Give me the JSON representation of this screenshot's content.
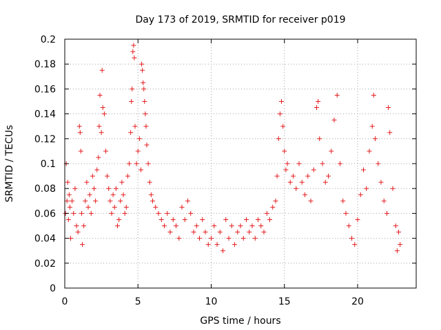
{
  "chart_data": {
    "type": "scatter",
    "title": "Day 173 of 2019, SRMTID for receiver p019",
    "xlabel": "GPS time / hours",
    "ylabel": "SRMTID / TECUs",
    "xlim": [
      0,
      24
    ],
    "ylim": [
      0,
      0.2
    ],
    "x_ticks": [
      0,
      5,
      10,
      15,
      20
    ],
    "x_tick_labels": [
      "0",
      "5",
      "10",
      "15",
      "20"
    ],
    "y_ticks": [
      0,
      0.02,
      0.04,
      0.06,
      0.08,
      0.1,
      0.12,
      0.14,
      0.16,
      0.18,
      0.2
    ],
    "y_tick_labels": [
      "0",
      "0.02",
      "0.04",
      "0.06",
      "0.08",
      "0.1",
      "0.12",
      "0.14",
      "0.16",
      "0.18",
      "0.2"
    ],
    "grid": true,
    "marker": "+",
    "color": "#e41a1c",
    "series": [
      {
        "name": "SRMTID",
        "points": [
          [
            0.05,
            0.06
          ],
          [
            0.1,
            0.1
          ],
          [
            0.15,
            0.07
          ],
          [
            0.2,
            0.085
          ],
          [
            0.25,
            0.055
          ],
          [
            0.3,
            0.075
          ],
          [
            0.35,
            0.065
          ],
          [
            0.4,
            0.04
          ],
          [
            0.5,
            0.07
          ],
          [
            0.6,
            0.06
          ],
          [
            0.7,
            0.08
          ],
          [
            0.8,
            0.05
          ],
          [
            0.9,
            0.045
          ],
          [
            1.0,
            0.13
          ],
          [
            1.05,
            0.125
          ],
          [
            1.1,
            0.11
          ],
          [
            1.15,
            0.06
          ],
          [
            1.2,
            0.035
          ],
          [
            1.3,
            0.05
          ],
          [
            1.4,
            0.07
          ],
          [
            1.5,
            0.085
          ],
          [
            1.6,
            0.065
          ],
          [
            1.7,
            0.075
          ],
          [
            1.8,
            0.06
          ],
          [
            1.9,
            0.09
          ],
          [
            2.0,
            0.08
          ],
          [
            2.1,
            0.07
          ],
          [
            2.2,
            0.095
          ],
          [
            2.3,
            0.105
          ],
          [
            2.35,
            0.13
          ],
          [
            2.4,
            0.155
          ],
          [
            2.5,
            0.125
          ],
          [
            2.55,
            0.175
          ],
          [
            2.6,
            0.145
          ],
          [
            2.7,
            0.14
          ],
          [
            2.8,
            0.11
          ],
          [
            2.9,
            0.09
          ],
          [
            3.0,
            0.08
          ],
          [
            3.1,
            0.07
          ],
          [
            3.2,
            0.06
          ],
          [
            3.3,
            0.075
          ],
          [
            3.4,
            0.065
          ],
          [
            3.5,
            0.08
          ],
          [
            3.6,
            0.05
          ],
          [
            3.7,
            0.055
          ],
          [
            3.8,
            0.07
          ],
          [
            3.9,
            0.085
          ],
          [
            4.0,
            0.075
          ],
          [
            4.1,
            0.06
          ],
          [
            4.2,
            0.065
          ],
          [
            4.3,
            0.09
          ],
          [
            4.4,
            0.1
          ],
          [
            4.5,
            0.125
          ],
          [
            4.55,
            0.15
          ],
          [
            4.6,
            0.16
          ],
          [
            4.65,
            0.19
          ],
          [
            4.7,
            0.195
          ],
          [
            4.75,
            0.185
          ],
          [
            4.8,
            0.13
          ],
          [
            4.9,
            0.1
          ],
          [
            5.0,
            0.11
          ],
          [
            5.1,
            0.12
          ],
          [
            5.2,
            0.095
          ],
          [
            5.25,
            0.18
          ],
          [
            5.3,
            0.175
          ],
          [
            5.35,
            0.165
          ],
          [
            5.4,
            0.16
          ],
          [
            5.45,
            0.15
          ],
          [
            5.5,
            0.14
          ],
          [
            5.55,
            0.13
          ],
          [
            5.6,
            0.115
          ],
          [
            5.7,
            0.1
          ],
          [
            5.8,
            0.085
          ],
          [
            5.9,
            0.075
          ],
          [
            6.0,
            0.07
          ],
          [
            6.2,
            0.065
          ],
          [
            6.4,
            0.06
          ],
          [
            6.6,
            0.055
          ],
          [
            6.8,
            0.05
          ],
          [
            7.0,
            0.06
          ],
          [
            7.2,
            0.045
          ],
          [
            7.4,
            0.055
          ],
          [
            7.6,
            0.05
          ],
          [
            7.8,
            0.04
          ],
          [
            8.0,
            0.065
          ],
          [
            8.2,
            0.055
          ],
          [
            8.4,
            0.07
          ],
          [
            8.6,
            0.06
          ],
          [
            8.8,
            0.045
          ],
          [
            9.0,
            0.05
          ],
          [
            9.2,
            0.04
          ],
          [
            9.4,
            0.055
          ],
          [
            9.6,
            0.045
          ],
          [
            9.8,
            0.035
          ],
          [
            10.0,
            0.04
          ],
          [
            10.2,
            0.05
          ],
          [
            10.4,
            0.035
          ],
          [
            10.6,
            0.045
          ],
          [
            10.8,
            0.03
          ],
          [
            11.0,
            0.055
          ],
          [
            11.2,
            0.04
          ],
          [
            11.4,
            0.05
          ],
          [
            11.6,
            0.035
          ],
          [
            11.8,
            0.045
          ],
          [
            12.0,
            0.05
          ],
          [
            12.2,
            0.04
          ],
          [
            12.4,
            0.055
          ],
          [
            12.6,
            0.045
          ],
          [
            12.8,
            0.05
          ],
          [
            13.0,
            0.04
          ],
          [
            13.2,
            0.055
          ],
          [
            13.4,
            0.05
          ],
          [
            13.6,
            0.045
          ],
          [
            13.8,
            0.06
          ],
          [
            14.0,
            0.055
          ],
          [
            14.2,
            0.065
          ],
          [
            14.4,
            0.07
          ],
          [
            14.5,
            0.09
          ],
          [
            14.6,
            0.12
          ],
          [
            14.7,
            0.14
          ],
          [
            14.8,
            0.15
          ],
          [
            14.9,
            0.13
          ],
          [
            15.0,
            0.11
          ],
          [
            15.1,
            0.095
          ],
          [
            15.2,
            0.1
          ],
          [
            15.4,
            0.085
          ],
          [
            15.6,
            0.09
          ],
          [
            15.8,
            0.08
          ],
          [
            16.0,
            0.1
          ],
          [
            16.2,
            0.085
          ],
          [
            16.4,
            0.075
          ],
          [
            16.6,
            0.09
          ],
          [
            16.8,
            0.07
          ],
          [
            17.0,
            0.095
          ],
          [
            17.2,
            0.145
          ],
          [
            17.3,
            0.15
          ],
          [
            17.4,
            0.12
          ],
          [
            17.6,
            0.1
          ],
          [
            17.8,
            0.085
          ],
          [
            18.0,
            0.09
          ],
          [
            18.2,
            0.11
          ],
          [
            18.4,
            0.135
          ],
          [
            18.6,
            0.155
          ],
          [
            18.8,
            0.1
          ],
          [
            19.0,
            0.07
          ],
          [
            19.2,
            0.06
          ],
          [
            19.4,
            0.05
          ],
          [
            19.6,
            0.04
          ],
          [
            19.8,
            0.035
          ],
          [
            20.0,
            0.055
          ],
          [
            20.2,
            0.075
          ],
          [
            20.4,
            0.095
          ],
          [
            20.6,
            0.08
          ],
          [
            20.8,
            0.11
          ],
          [
            21.0,
            0.13
          ],
          [
            21.1,
            0.155
          ],
          [
            21.2,
            0.12
          ],
          [
            21.4,
            0.1
          ],
          [
            21.6,
            0.085
          ],
          [
            21.8,
            0.07
          ],
          [
            22.0,
            0.06
          ],
          [
            22.1,
            0.145
          ],
          [
            22.2,
            0.125
          ],
          [
            22.4,
            0.08
          ],
          [
            22.6,
            0.05
          ],
          [
            22.7,
            0.03
          ],
          [
            22.8,
            0.045
          ],
          [
            22.9,
            0.035
          ]
        ]
      }
    ]
  }
}
